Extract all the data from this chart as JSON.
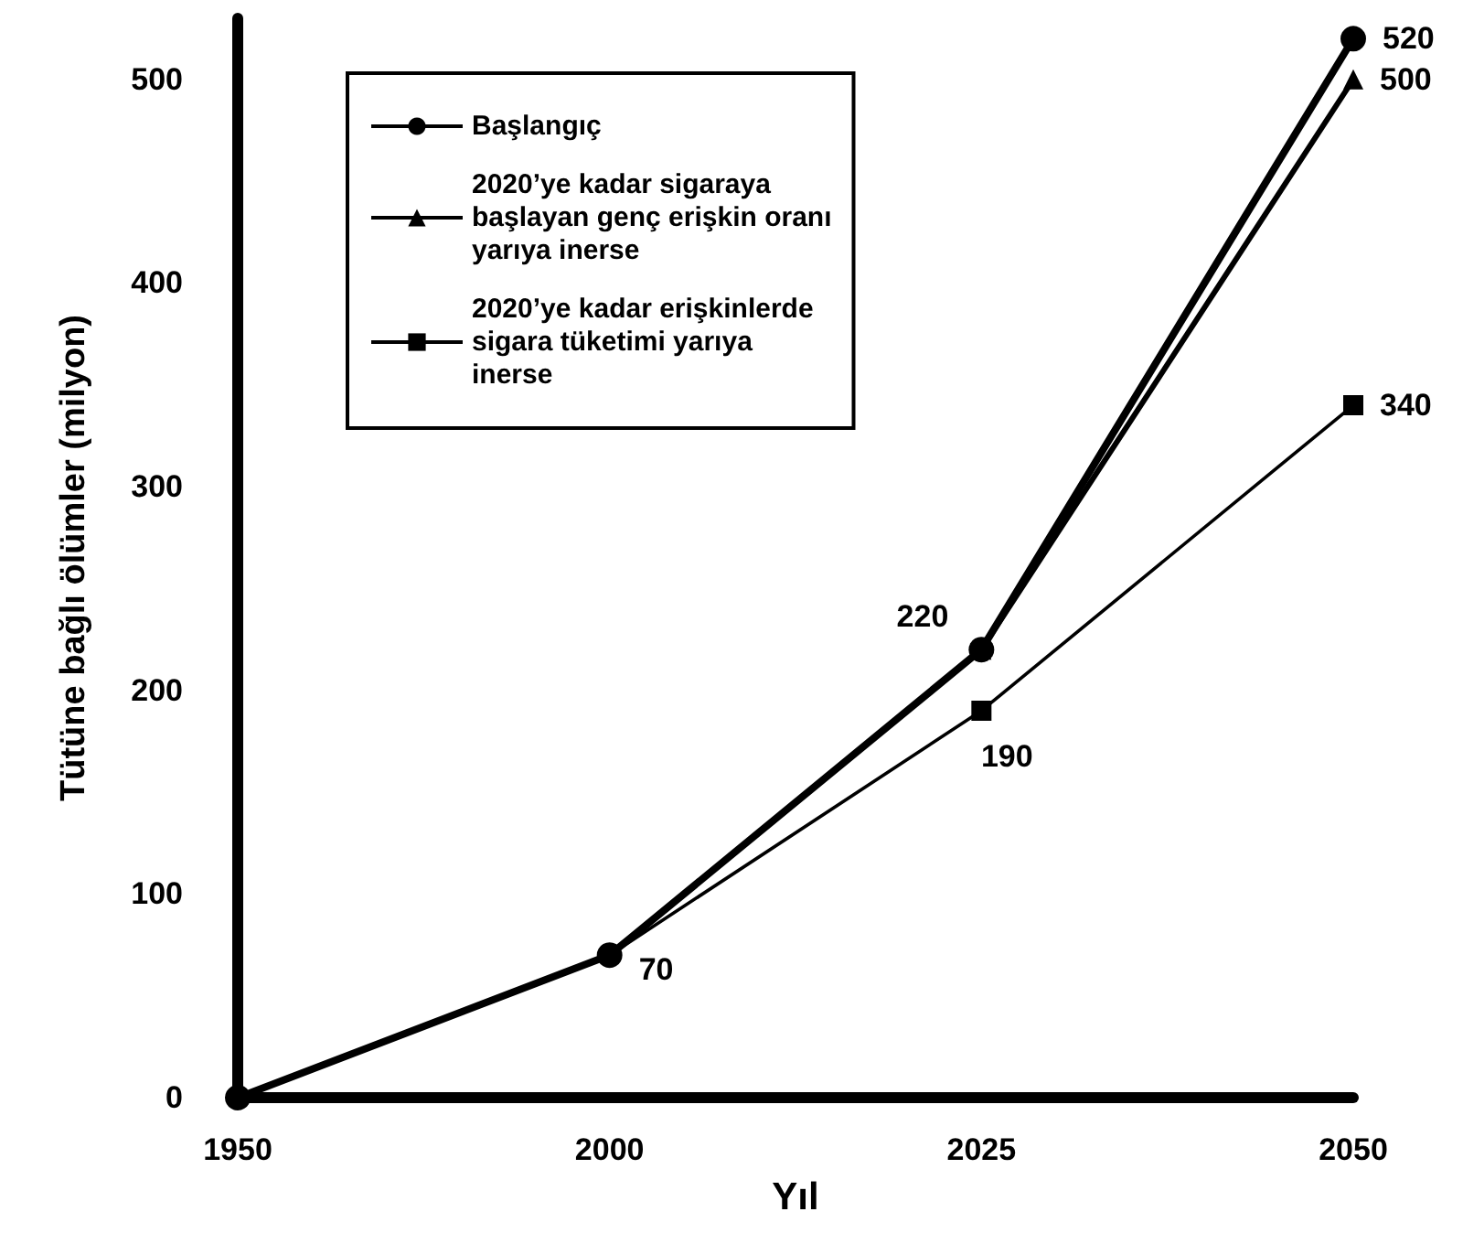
{
  "chart_data": {
    "type": "line",
    "xlabel": "Yıl",
    "ylabel": "Tütüne bağlı ölümler (milyon)",
    "categories": [
      "1950",
      "2000",
      "2025",
      "2050"
    ],
    "ylim": [
      0,
      530
    ],
    "yticks": [
      0,
      100,
      200,
      300,
      400,
      500
    ],
    "grid": false,
    "legend": "top left",
    "series": [
      {
        "name": "Başlangıç",
        "color": "#000000",
        "marker": "circle",
        "values": [
          0,
          70,
          220,
          520
        ],
        "value_labels": [
          null,
          "70",
          "220",
          "520"
        ]
      },
      {
        "name": "2020’ye kadar sigaraya başlayan genç erişkin oranı yarıya inerse",
        "color": "#000000",
        "marker": "triangle",
        "values": [
          0,
          70,
          220,
          500
        ],
        "value_labels": [
          null,
          null,
          null,
          "500"
        ]
      },
      {
        "name": "2020’ye kadar erişkinlerde sigara tüketimi yarıya inerse",
        "color": "#000000",
        "marker": "square",
        "values": [
          0,
          70,
          190,
          340
        ],
        "value_labels": [
          null,
          null,
          "190",
          "340"
        ]
      }
    ]
  }
}
